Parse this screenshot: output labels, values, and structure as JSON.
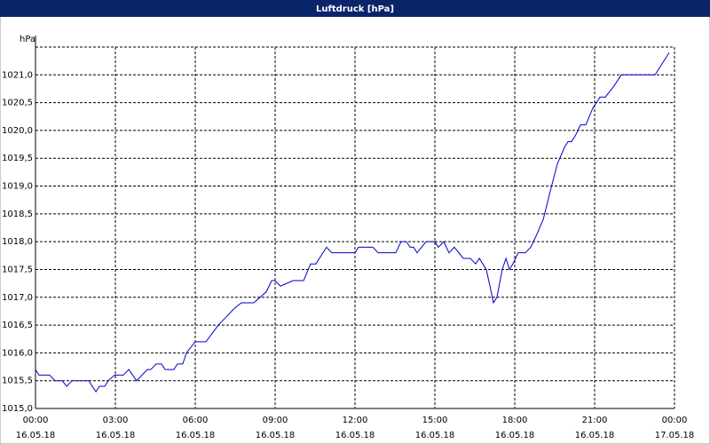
{
  "chart_data": {
    "type": "line",
    "title": "Luftdruck [hPa]",
    "y_label": "hPa",
    "x": [
      0,
      0.13,
      0.53,
      0.73,
      1.0,
      1.17,
      1.37,
      2.0,
      2.13,
      2.27,
      2.4,
      2.6,
      2.73,
      2.97,
      3.3,
      3.5,
      3.8,
      4.2,
      4.33,
      4.53,
      4.73,
      4.87,
      5.2,
      5.33,
      5.53,
      5.67,
      6.0,
      6.4,
      6.87,
      7.27,
      7.47,
      7.73,
      8.2,
      8.67,
      8.87,
      9.0,
      9.2,
      9.67,
      10.07,
      10.33,
      10.53,
      10.93,
      11.13,
      12.0,
      12.13,
      12.67,
      12.87,
      13.53,
      13.73,
      13.93,
      14.07,
      14.2,
      14.33,
      14.67,
      15.0,
      15.13,
      15.33,
      15.53,
      15.73,
      16.07,
      16.33,
      16.53,
      16.67,
      16.93,
      17.07,
      17.2,
      17.33,
      17.53,
      17.67,
      17.8,
      17.93,
      18.13,
      18.4,
      18.6,
      18.8,
      19.07,
      19.33,
      19.6,
      19.87,
      20.0,
      20.13,
      20.27,
      20.47,
      20.67,
      20.93,
      21.2,
      21.4,
      21.73,
      22.0,
      23.27,
      23.8
    ],
    "series": [
      {
        "name": "Luftdruck",
        "color": "#0000cc",
        "values": [
          1015.7,
          1015.6,
          1015.6,
          1015.5,
          1015.5,
          1015.4,
          1015.5,
          1015.5,
          1015.4,
          1015.3,
          1015.4,
          1015.4,
          1015.5,
          1015.6,
          1015.6,
          1015.7,
          1015.5,
          1015.7,
          1015.7,
          1015.8,
          1015.8,
          1015.7,
          1015.7,
          1015.8,
          1015.8,
          1016.0,
          1016.2,
          1016.2,
          1016.5,
          1016.7,
          1016.8,
          1016.9,
          1016.9,
          1017.1,
          1017.3,
          1017.3,
          1017.2,
          1017.3,
          1017.3,
          1017.6,
          1017.6,
          1017.9,
          1017.8,
          1017.8,
          1017.9,
          1017.9,
          1017.8,
          1017.8,
          1018.0,
          1018.0,
          1017.9,
          1017.9,
          1017.8,
          1018.0,
          1018.0,
          1017.9,
          1018.0,
          1017.8,
          1017.9,
          1017.7,
          1017.7,
          1017.6,
          1017.7,
          1017.5,
          1017.2,
          1016.9,
          1017.0,
          1017.5,
          1017.7,
          1017.5,
          1017.6,
          1017.8,
          1017.8,
          1017.9,
          1018.1,
          1018.4,
          1018.9,
          1019.4,
          1019.7,
          1019.8,
          1019.8,
          1019.9,
          1020.1,
          1020.1,
          1020.4,
          1020.6,
          1020.6,
          1020.8,
          1021.0,
          1021.0,
          1021.4
        ]
      }
    ],
    "xlim": [
      0,
      24
    ],
    "xticks": [
      {
        "value": 0,
        "label": "00:00\n16.05.18"
      },
      {
        "value": 3,
        "label": "03:00\n16.05.18"
      },
      {
        "value": 6,
        "label": "06:00\n16.05.18"
      },
      {
        "value": 9,
        "label": "09:00\n16.05.18"
      },
      {
        "value": 12,
        "label": "12:00\n16.05.18"
      },
      {
        "value": 15,
        "label": "15:00\n16.05.18"
      },
      {
        "value": 18,
        "label": "18:00\n16.05.18"
      },
      {
        "value": 21,
        "label": "21:00\n16.05.18"
      },
      {
        "value": 24,
        "label": "00:00\n17.05.18"
      }
    ],
    "ylim": [
      1015,
      1021.5
    ],
    "yticks": [
      {
        "value": 1015,
        "label": "1015,0"
      },
      {
        "value": 1015.5,
        "label": "1015,5"
      },
      {
        "value": 1016,
        "label": "1016,0"
      },
      {
        "value": 1016.5,
        "label": "1016,5"
      },
      {
        "value": 1017,
        "label": "1017,0"
      },
      {
        "value": 1017.5,
        "label": "1017,5"
      },
      {
        "value": 1018,
        "label": "1018,0"
      },
      {
        "value": 1018.5,
        "label": "1018,5"
      },
      {
        "value": 1019,
        "label": "1019,0"
      },
      {
        "value": 1019.5,
        "label": "1019,5"
      },
      {
        "value": 1020,
        "label": "1020,0"
      },
      {
        "value": 1020.5,
        "label": "1020,5"
      },
      {
        "value": 1021,
        "label": "1021,0"
      }
    ],
    "grid": true
  }
}
